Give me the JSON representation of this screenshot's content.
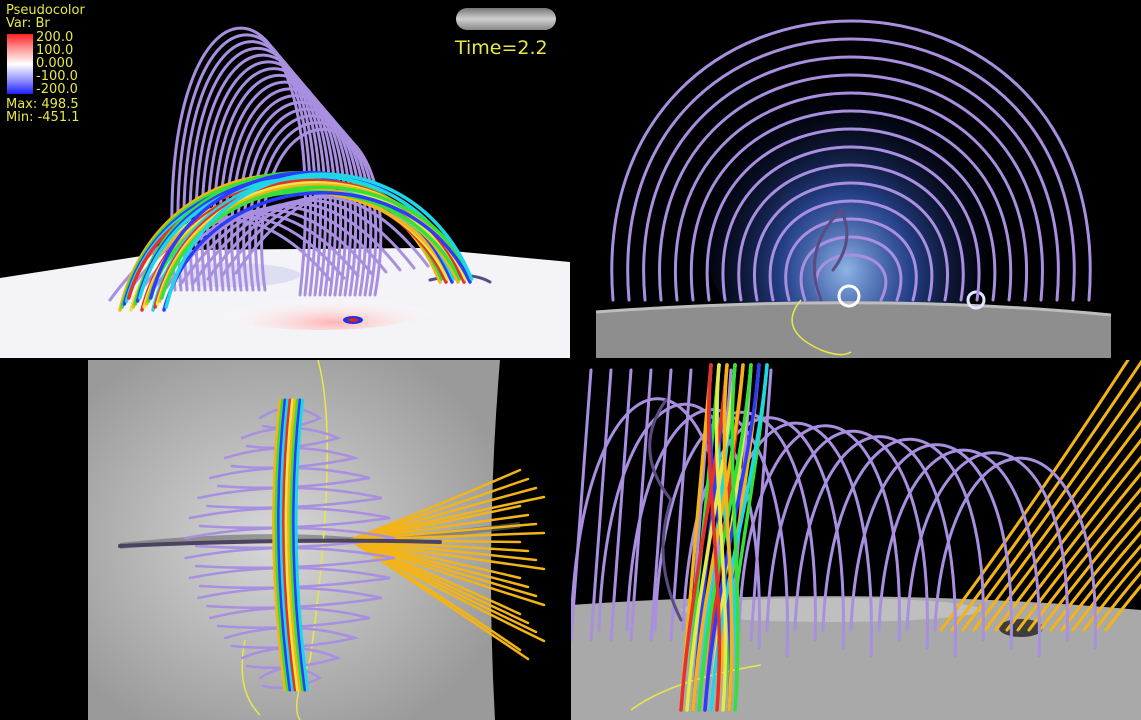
{
  "legend": {
    "title": "Pseudocolor",
    "variable": "Var: Br",
    "ticks": [
      "200.0",
      "100.0",
      "0.000",
      "-100.0",
      "-200.0"
    ],
    "max": "Max:  498.5",
    "min": "Min:  -451.1"
  },
  "time_label": "Time=2.2",
  "colors": {
    "purple": "#a88fe0",
    "dark_purple": "#5a4c82",
    "gold": "#f2b417",
    "yellow": "#e8e84a",
    "green": "#35e03a",
    "blue": "#2a3cff",
    "cyan": "#1ed6e6",
    "red": "#e8302a"
  }
}
